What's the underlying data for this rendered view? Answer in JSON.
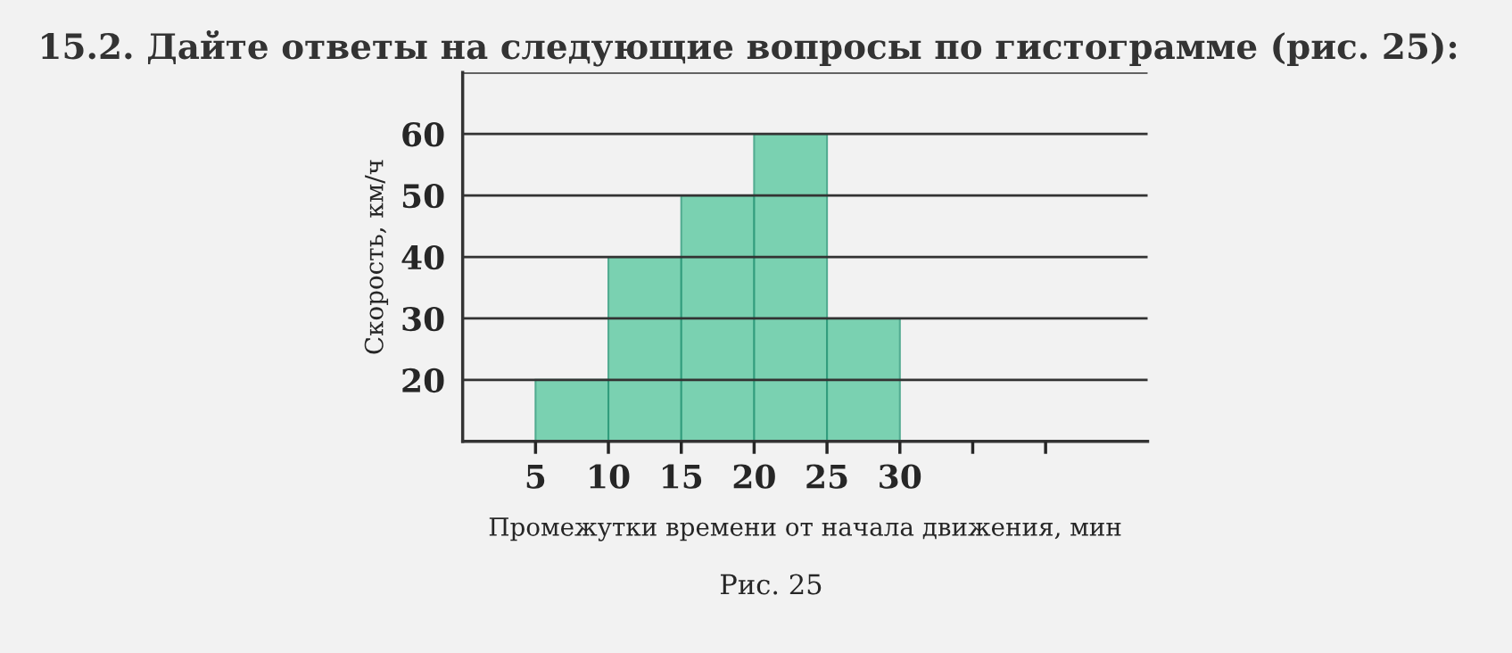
{
  "chart_data": {
    "type": "histogram",
    "title": "15.2. Дайте ответы на следующие вопросы по гистограмме (рис. 25):",
    "xlabel": "Промежутки времени от начала движения, мин",
    "ylabel": "Скорость, км/ч",
    "bins": [
      5,
      10,
      15,
      20,
      25,
      30
    ],
    "values": [
      20,
      40,
      50,
      60,
      30
    ],
    "color": "#5cc8a0",
    "xlim": [
      0,
      47
    ],
    "xticks": [
      5,
      10,
      15,
      20,
      25,
      30,
      {
        "value": 35,
        "label": null
      },
      {
        "value": 40,
        "label": null
      }
    ],
    "ylim": [
      10,
      70
    ],
    "yticks": [
      20,
      30,
      40,
      50,
      60,
      {
        "value": 70,
        "label": null
      }
    ],
    "grid": "y",
    "annotations": [
      "Рис. 25"
    ]
  }
}
